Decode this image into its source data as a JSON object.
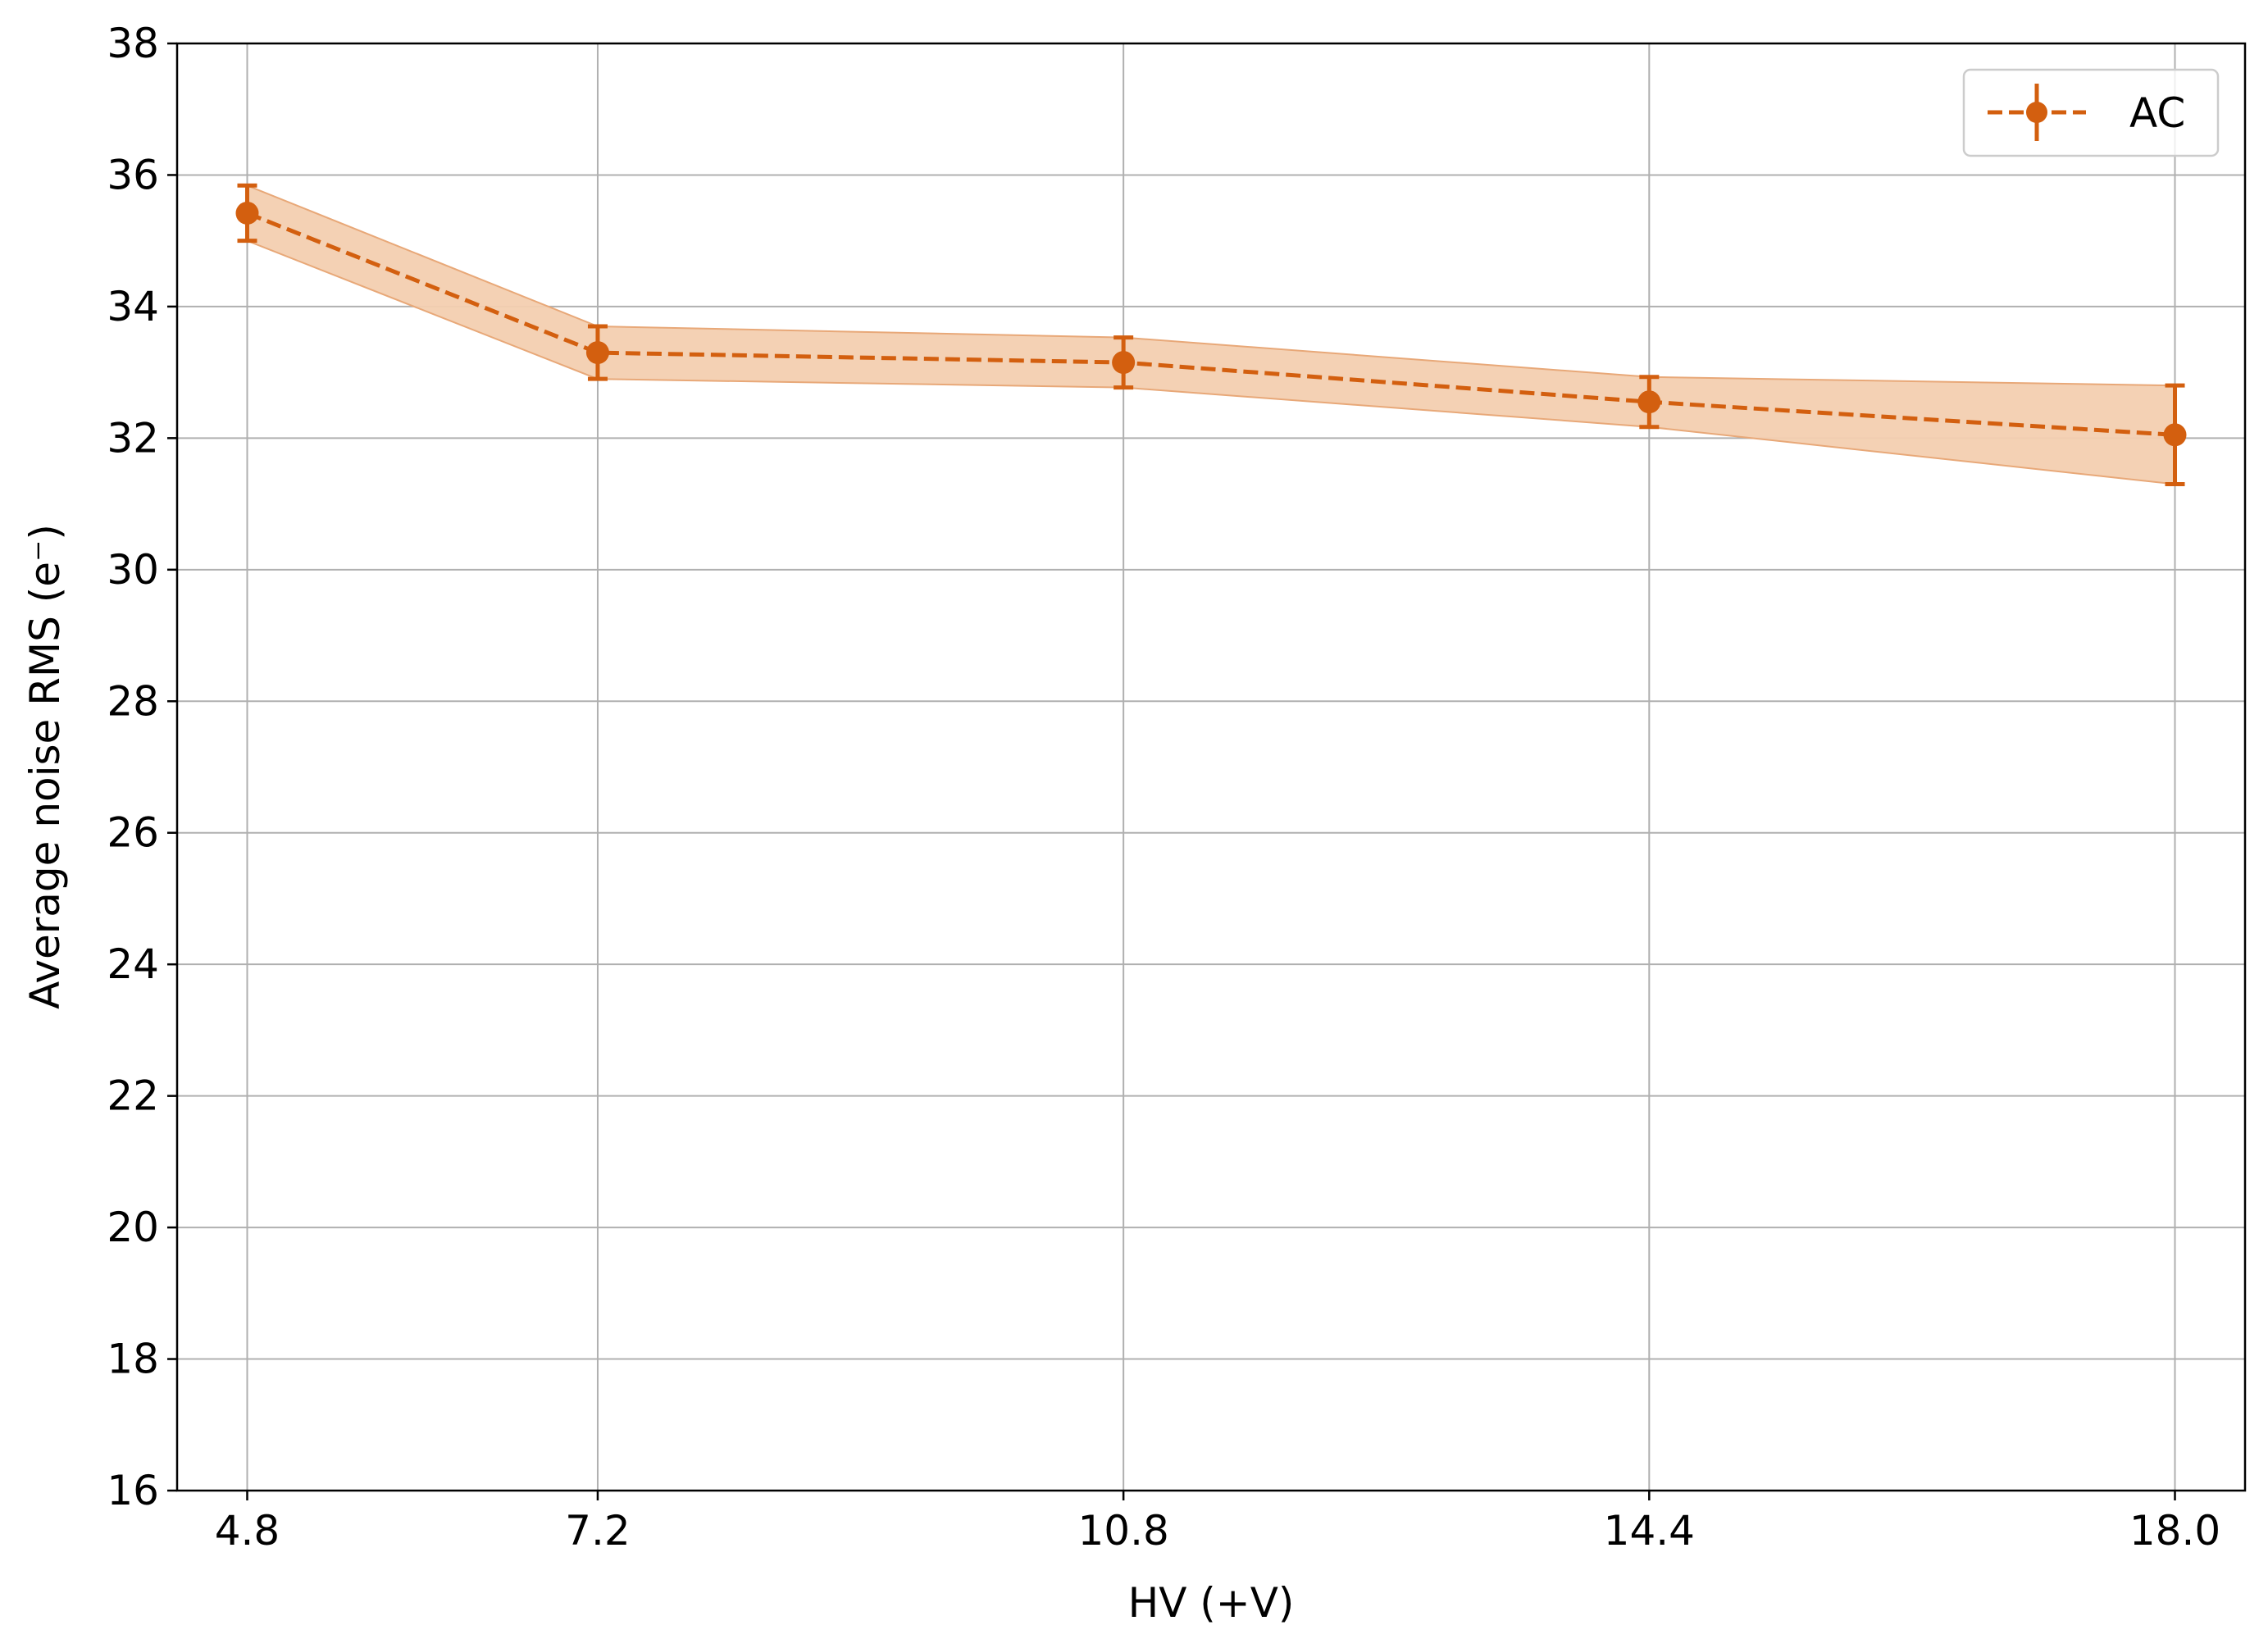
{
  "chart_data": {
    "type": "line",
    "xlabel": "HV (+V)",
    "ylabel": "Average noise RMS (e⁻)",
    "xlim": [
      4.32,
      18.48
    ],
    "ylim": [
      16,
      38
    ],
    "x_ticks": [
      "4.8",
      "7.2",
      "10.8",
      "14.4",
      "18.0"
    ],
    "y_ticks": [
      "16",
      "18",
      "20",
      "22",
      "24",
      "26",
      "28",
      "30",
      "32",
      "34",
      "36",
      "38"
    ],
    "grid": true,
    "legend_position": "top-right",
    "series": [
      {
        "name": "AC",
        "color": "#d35f0f",
        "band_color": "#f3cfb0",
        "line_style": "dashed",
        "marker": "circle",
        "x": [
          4.8,
          7.2,
          10.8,
          14.4,
          18.0
        ],
        "y": [
          35.42,
          33.3,
          33.15,
          32.55,
          32.05
        ],
        "yerr": [
          0.42,
          0.4,
          0.38,
          0.38,
          0.75
        ]
      }
    ]
  }
}
